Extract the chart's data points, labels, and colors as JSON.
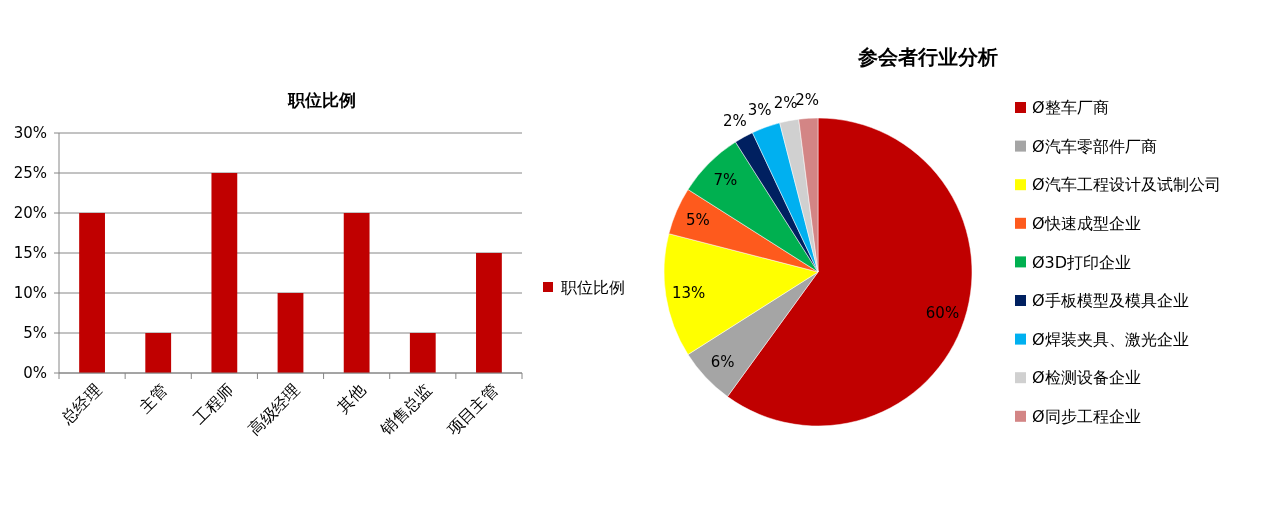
{
  "chart_data": [
    {
      "type": "bar",
      "title": "职位比例",
      "categories": [
        "总经理",
        "主管",
        "工程师",
        "高级经理",
        "其他",
        "销售总监",
        "项目主管"
      ],
      "series": [
        {
          "name": "职位比例",
          "color": "#c00000",
          "values": [
            20,
            5,
            25,
            10,
            20,
            5,
            15
          ]
        }
      ],
      "ylim": [
        0,
        30
      ],
      "yticks": [
        {
          "value": 0,
          "label": "0%"
        },
        {
          "value": 5,
          "label": "5%"
        },
        {
          "value": 10,
          "label": "10%"
        },
        {
          "value": 15,
          "label": "15%"
        },
        {
          "value": 20,
          "label": "20%"
        },
        {
          "value": 25,
          "label": "25%"
        },
        {
          "value": 30,
          "label": "30%"
        }
      ],
      "grid": "y",
      "legend": "right"
    },
    {
      "type": "pie",
      "title": "参会者行业分析",
      "categories": [
        "Ø整车厂商",
        "Ø汽车零部件厂商",
        "Ø汽车工程设计及试制公司",
        "Ø快速成型企业",
        "Ø3D打印企业",
        "Ø手板模型及模具企业",
        "Ø焊装夹具、激光企业",
        "Ø检测设备企业",
        "Ø同步工程企业"
      ],
      "values": [
        60,
        6,
        13,
        5,
        7,
        2,
        3,
        2,
        2
      ],
      "colors": [
        "#c00000",
        "#a5a5a5",
        "#ffff00",
        "#fe5a1d",
        "#00b050",
        "#002060",
        "#00b0f0",
        "#d0d0d0",
        "#d38585"
      ],
      "value_labels": [
        "60%",
        "6%",
        "13%",
        "5%",
        "7%",
        "2%",
        "3%",
        "2%",
        "2%"
      ],
      "legend": "right"
    }
  ]
}
